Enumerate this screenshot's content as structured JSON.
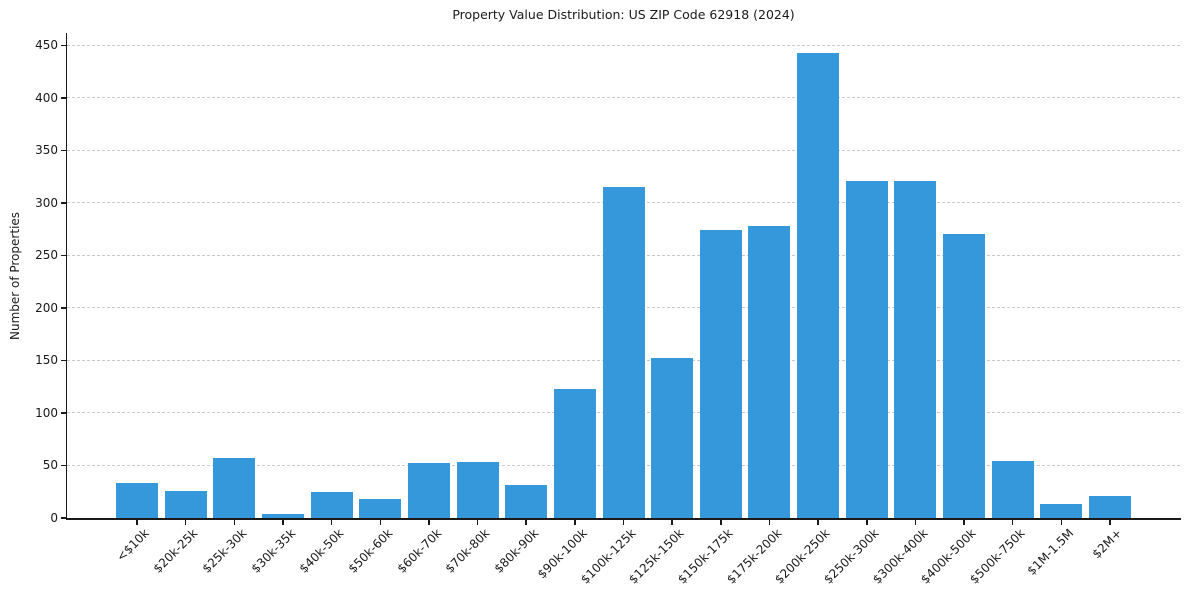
{
  "figure": {
    "background": "#ffffff"
  },
  "chart_data": {
    "type": "bar",
    "title": "Property Value Distribution: US ZIP Code 62918 (2024)",
    "xlabel": "",
    "ylabel": "Number of Properties",
    "categories": [
      "<$10k",
      "$20k-25k",
      "$25k-30k",
      "$30k-35k",
      "$40k-50k",
      "$50k-60k",
      "$60k-70k",
      "$70k-80k",
      "$80k-90k",
      "$90k-100k",
      "$100k-125k",
      "$125k-150k",
      "$150k-175k",
      "$175k-200k",
      "$200k-250k",
      "$250k-300k",
      "$300k-400k",
      "$400k-500k",
      "$500k-750k",
      "$1M-1.5M",
      "$2M+"
    ],
    "values": [
      33,
      26,
      57,
      4,
      25,
      18,
      52,
      53,
      31,
      123,
      315,
      152,
      274,
      278,
      443,
      321,
      321,
      271,
      54,
      13,
      21
    ],
    "yticks": [
      0,
      50,
      100,
      150,
      200,
      250,
      300,
      350,
      400,
      450
    ],
    "ylim": [
      0,
      462
    ],
    "x_tick_rotation": 45,
    "grid": {
      "axis": "y",
      "style": "dashed",
      "color": "#c9c9c9"
    },
    "legend": "none",
    "bar_color": "#3498db",
    "axis_color": "#1a1a1a",
    "text_color": "#1a1a1a"
  }
}
